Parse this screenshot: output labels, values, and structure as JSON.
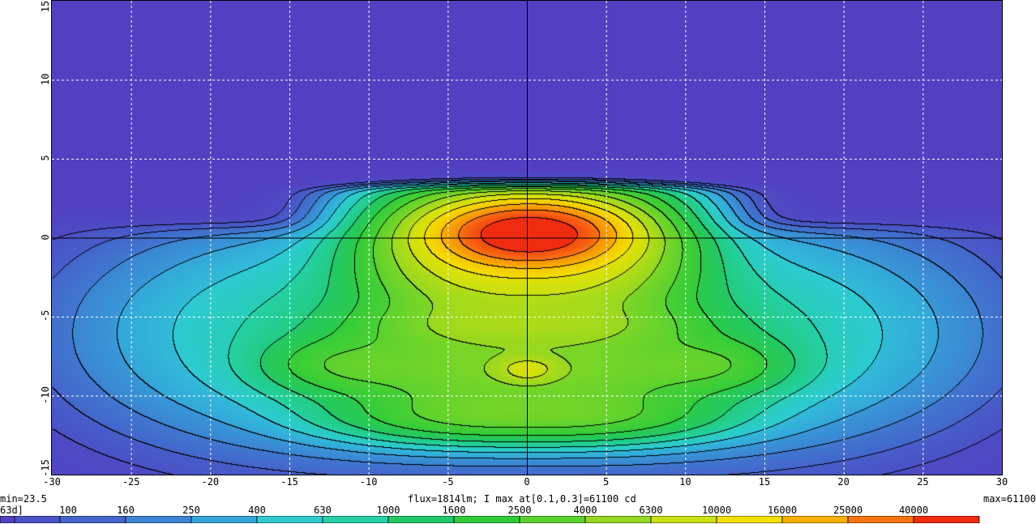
{
  "chart_data": {
    "type": "heatmap",
    "xlim": [
      -30,
      30
    ],
    "ylim": [
      -15,
      15
    ],
    "x_ticks": [
      "-30",
      "-25",
      "-20",
      "-15",
      "-10",
      "-5",
      "0",
      "5",
      "10",
      "15",
      "20",
      "25",
      "30"
    ],
    "y_ticks": [
      "15",
      "10",
      "5",
      "0",
      "-5",
      "-10",
      "-15"
    ],
    "grid": true,
    "min_label": "min=23.5",
    "max_label": "max=61100",
    "info_label": "flux=1814lm; I max at[0.1,0.3]=61100 cd",
    "colorbar_first_label": "63d]",
    "colorbar_levels": [
      "100",
      "160",
      "250",
      "400",
      "630",
      "1000",
      "1600",
      "2500",
      "4000",
      "6300",
      "10000",
      "16000",
      "25000",
      "40000"
    ],
    "colorbar_colors": [
      "#5141c2",
      "#4a52c6",
      "#4466cc",
      "#3c84d2",
      "#34a6da",
      "#2ecad4",
      "#24d0a4",
      "#22c866",
      "#32cc3a",
      "#5ad22e",
      "#96d820",
      "#cae010",
      "#f2e000",
      "#f8b000",
      "#f87410",
      "#f02c10"
    ],
    "min": 23.5,
    "max": 61100,
    "max_location": [
      0.1,
      0.3
    ],
    "unit": "cd",
    "flux_lm": 1814
  }
}
